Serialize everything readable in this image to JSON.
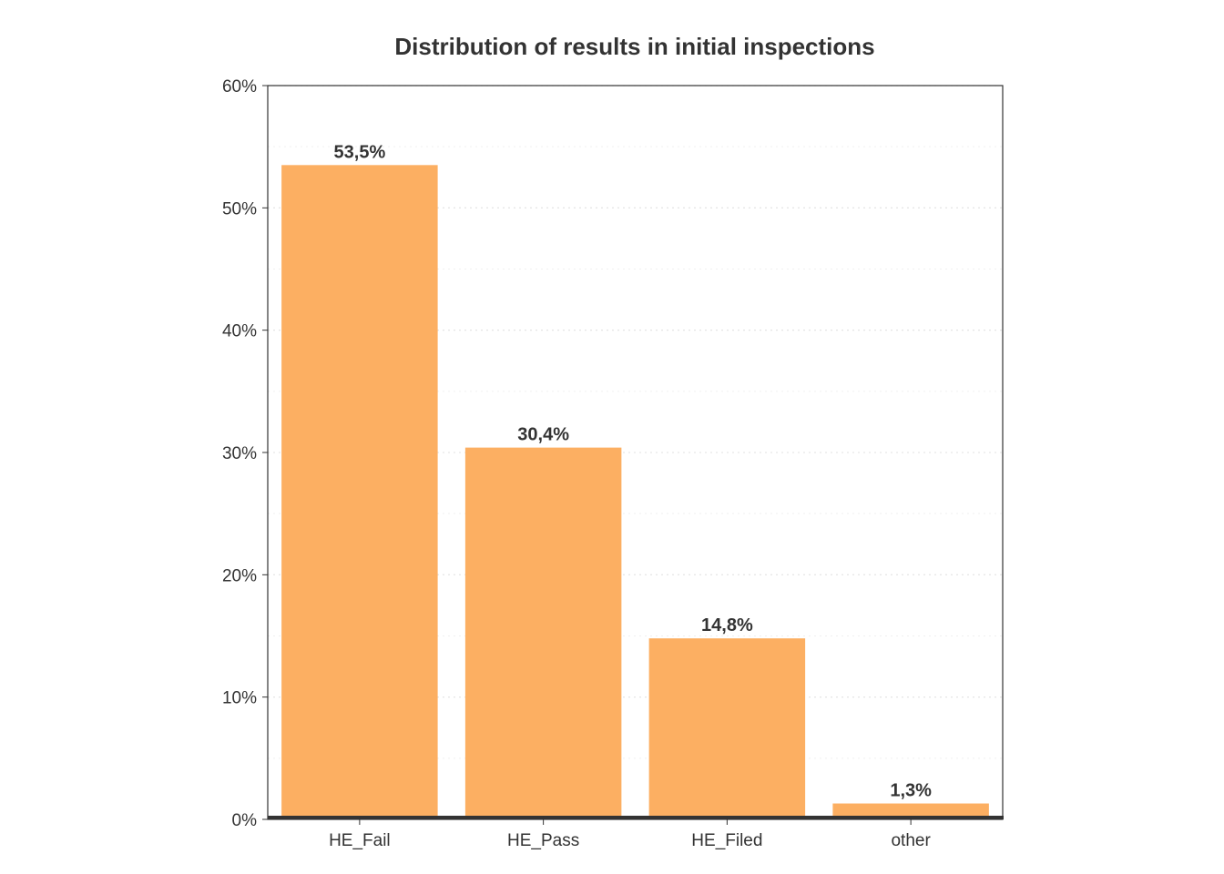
{
  "chart_data": {
    "type": "bar",
    "title": "Distribution of results in initial inspections",
    "xlabel": "",
    "ylabel": "",
    "categories": [
      "HE_Fail",
      "HE_Pass",
      "HE_Filed",
      "other"
    ],
    "values": [
      53.5,
      30.4,
      14.8,
      1.3
    ],
    "value_labels": [
      "53,5%",
      "30,4%",
      "14,8%",
      "1,3%"
    ],
    "ylim": [
      0,
      60
    ],
    "y_ticks": [
      0,
      10,
      20,
      30,
      40,
      50,
      60
    ],
    "y_tick_labels": [
      "0%",
      "10%",
      "20%",
      "30%",
      "40%",
      "50%",
      "60%"
    ],
    "grid": true,
    "legend": "none",
    "bar_color": "#fcaf62",
    "text_color": "#333333"
  }
}
